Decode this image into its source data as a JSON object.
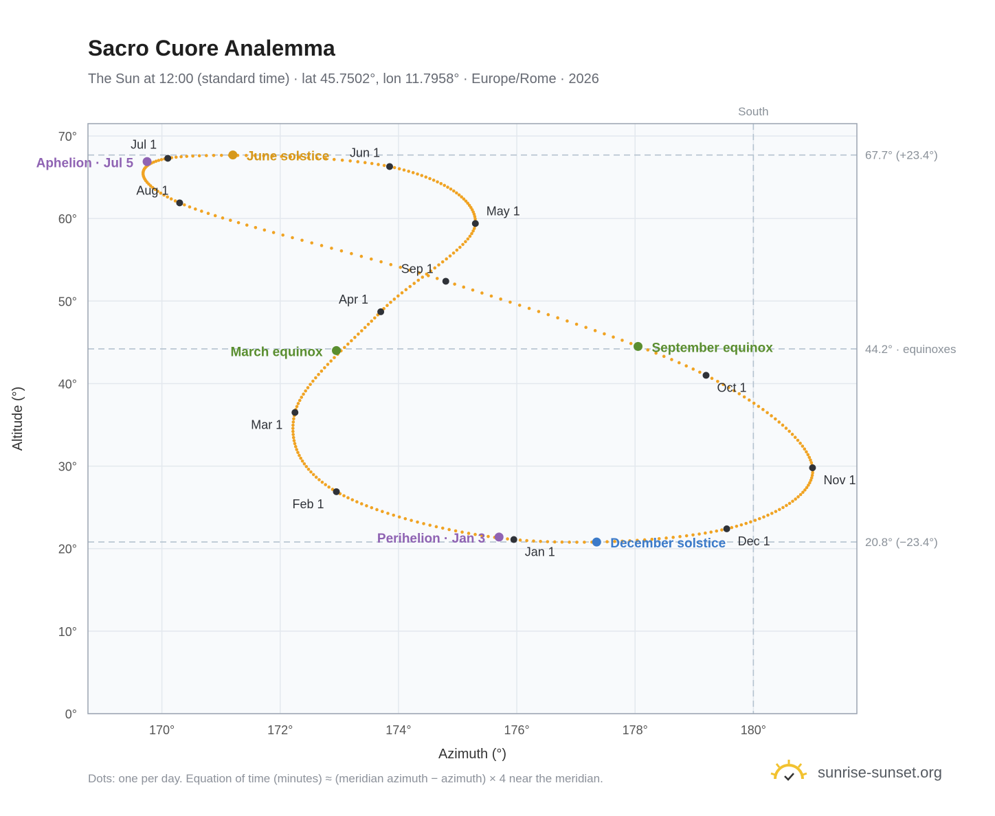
{
  "page": {
    "title": "Sacro Cuore Analemma",
    "subtitle": "The Sun at 12:00 (standard time) · lat 45.7502°, lon 11.7958° · Europe/Rome · 2026",
    "footnote": "Dots: one per day. Equation of time (minutes) ≈ (meridian azimuth − azimuth) × 4 near the meridian.",
    "brand": "sunrise-sunset.org",
    "brand_icon": "sun-logo-icon"
  },
  "chart_data": {
    "type": "scatter",
    "xlabel": "Azimuth (°)",
    "ylabel": "Altitude (°)",
    "xlim": [
      168.75,
      181.75
    ],
    "ylim": [
      0,
      71.5
    ],
    "xticks": [
      170,
      172,
      174,
      176,
      178,
      180
    ],
    "xtick_labels": [
      "170°",
      "172°",
      "174°",
      "176°",
      "178°",
      "180°"
    ],
    "yticks": [
      0,
      10,
      20,
      30,
      40,
      50,
      60,
      70
    ],
    "ytick_labels": [
      "0°",
      "10°",
      "20°",
      "30°",
      "40°",
      "50°",
      "60°",
      "70°"
    ],
    "grid": true,
    "colors": {
      "curve": "#f0a323",
      "month_marker": "#2f3238",
      "june_solstice": "#d6981b",
      "december_solstice": "#3b7ac9",
      "equinox": "#5a8e2f",
      "apsis": "#8f63b3",
      "reference_line": "#b4c2cf",
      "plot_bg": "#f8fafc",
      "frame": "#9aa3b0"
    },
    "reference_lines": [
      {
        "axis": "y",
        "value": 67.7,
        "label": "67.7° (+23.4°)"
      },
      {
        "axis": "y",
        "value": 44.2,
        "label": "44.2° · equinoxes"
      },
      {
        "axis": "y",
        "value": 20.8,
        "label": "20.8° (−23.4°)"
      },
      {
        "axis": "x",
        "value": 180,
        "label": "South"
      }
    ],
    "month_markers": [
      {
        "label": "Jan 1",
        "x": 175.95,
        "y": 21.1
      },
      {
        "label": "Feb 1",
        "x": 172.95,
        "y": 26.9
      },
      {
        "label": "Mar 1",
        "x": 172.25,
        "y": 36.5
      },
      {
        "label": "Apr 1",
        "x": 173.7,
        "y": 48.7
      },
      {
        "label": "May 1",
        "x": 175.3,
        "y": 59.4
      },
      {
        "label": "Jun 1",
        "x": 173.85,
        "y": 66.3
      },
      {
        "label": "Jul 1",
        "x": 170.1,
        "y": 67.3
      },
      {
        "label": "Aug 1",
        "x": 170.3,
        "y": 61.9
      },
      {
        "label": "Sep 1",
        "x": 174.8,
        "y": 52.4
      },
      {
        "label": "Oct 1",
        "x": 179.2,
        "y": 41.0
      },
      {
        "label": "Nov 1",
        "x": 181.0,
        "y": 29.8
      },
      {
        "label": "Dec 1",
        "x": 179.55,
        "y": 22.4
      }
    ],
    "events": [
      {
        "label": "June solstice",
        "x": 171.2,
        "y": 67.7,
        "kind": "june_solstice"
      },
      {
        "label": "December solstice",
        "x": 177.35,
        "y": 20.8,
        "kind": "december_solstice"
      },
      {
        "label": "March equinox",
        "x": 172.95,
        "y": 44.0,
        "kind": "equinox"
      },
      {
        "label": "September equinox",
        "x": 178.05,
        "y": 44.5,
        "kind": "equinox"
      },
      {
        "label": "Aphelion · Jul 5",
        "x": 169.75,
        "y": 66.9,
        "kind": "apsis"
      },
      {
        "label": "Perihelion · Jan 3",
        "x": 175.7,
        "y": 21.4,
        "kind": "apsis"
      }
    ]
  }
}
